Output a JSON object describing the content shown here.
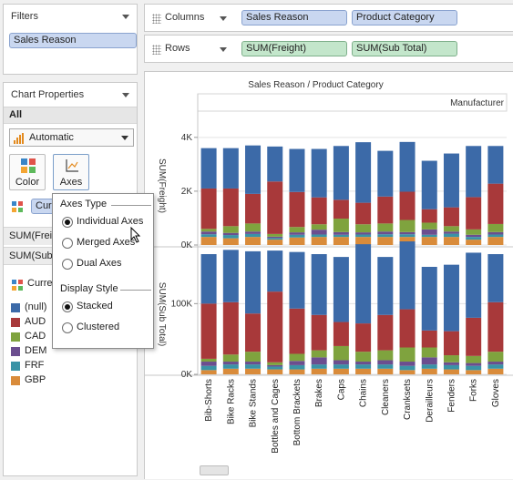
{
  "filters": {
    "title": "Filters",
    "pill": "Sales Reason"
  },
  "columns_shelf": {
    "label": "Columns",
    "pills": [
      "Sales Reason",
      "Product Category"
    ]
  },
  "rows_shelf": {
    "label": "Rows",
    "pills": [
      "SUM(Freight)",
      "SUM(Sub Total)"
    ]
  },
  "chart_properties": {
    "title": "Chart Properties",
    "scope": "All",
    "mark_type": "Automatic",
    "color_button": "Color",
    "axes_button": "Axes",
    "color_pill": "Currency",
    "measure_rows": [
      "SUM(Freight)",
      "SUM(Sub Total)"
    ],
    "legend_title": "Currency"
  },
  "legend": [
    {
      "label": "(null)",
      "color": "#3c6aa8"
    },
    {
      "label": "AUD",
      "color": "#a8393a"
    },
    {
      "label": "CAD",
      "color": "#7fa33e"
    },
    {
      "label": "DEM",
      "color": "#6b4e8f"
    },
    {
      "label": "FRF",
      "color": "#3a93a6"
    },
    {
      "label": "GBP",
      "color": "#d98b3a"
    }
  ],
  "axes_popup": {
    "section1": "Axes Type",
    "options1": [
      "Individual Axes",
      "Merged Axes",
      "Dual Axes"
    ],
    "selected1": 0,
    "section2": "Display Style",
    "options2": [
      "Stacked",
      "Clustered"
    ],
    "selected2": 0
  },
  "chart_data": {
    "type": "bar",
    "title": "Sales Reason / Product Category",
    "facet_header": "Manufacturer",
    "categories": [
      "Bib-Shorts",
      "Bike Racks",
      "Bike Stands",
      "Bottles and Cages",
      "Bottom Brackets",
      "Brakes",
      "Caps",
      "Chains",
      "Cleaners",
      "Cranksets",
      "Derailleurs",
      "Fenders",
      "Forks",
      "Gloves"
    ],
    "panels": [
      {
        "ylabel": "SUM(Freight)",
        "ticks": [
          "0K",
          "2K",
          "4K"
        ],
        "tick_values": [
          0,
          2000,
          4000
        ],
        "ylim": [
          0,
          4400
        ],
        "series": [
          {
            "name": "GBP",
            "values": [
              300,
              250,
              300,
              200,
              280,
              300,
              300,
              300,
              300,
              300,
              300,
              300,
              200,
              300
            ]
          },
          {
            "name": "FRF",
            "values": [
              100,
              120,
              110,
              60,
              100,
              90,
              80,
              90,
              100,
              100,
              80,
              120,
              100,
              90
            ]
          },
          {
            "name": "DEM",
            "values": [
              100,
              80,
              90,
              50,
              90,
              180,
              100,
              80,
              100,
              80,
              200,
              80,
              80,
              90
            ]
          },
          {
            "name": "CAD",
            "values": [
              100,
              250,
              300,
              100,
              200,
              200,
              500,
              300,
              300,
              450,
              250,
              200,
              200,
              300
            ]
          },
          {
            "name": "AUD",
            "values": [
              1500,
              1400,
              1100,
              1950,
              1300,
              1000,
              700,
              800,
              1000,
              1050,
              500,
              700,
              1200,
              1500
            ]
          },
          {
            "name": "(null)",
            "values": [
              1500,
              1500,
              1800,
              1300,
              1600,
              1800,
              2000,
              2250,
              1700,
              1850,
              1800,
              2000,
              1900,
              1400
            ]
          }
        ]
      },
      {
        "ylabel": "SUM(Sub Total)",
        "ticks": [
          "0K",
          "100K"
        ],
        "tick_values": [
          0,
          100000
        ],
        "ylim": [
          0,
          170000
        ],
        "series": [
          {
            "name": "GBP",
            "values": [
              6000,
              8000,
              8000,
              7000,
              7000,
              8000,
              8000,
              8000,
              8000,
              6000,
              8000,
              7000,
              6000,
              8000
            ]
          },
          {
            "name": "FRF",
            "values": [
              6000,
              6000,
              6000,
              4000,
              6000,
              6000,
              6000,
              6000,
              6000,
              6000,
              6000,
              6000,
              6000,
              6000
            ]
          },
          {
            "name": "DEM",
            "values": [
              6000,
              4000,
              4000,
              2000,
              6000,
              10000,
              6000,
              4000,
              6000,
              6000,
              10000,
              4000,
              4000,
              4000
            ]
          },
          {
            "name": "CAD",
            "values": [
              4000,
              10000,
              14000,
              4000,
              10000,
              10000,
              20000,
              14000,
              14000,
              20000,
              14000,
              10000,
              10000,
              14000
            ]
          },
          {
            "name": "AUD",
            "values": [
              78000,
              74000,
              54000,
              100000,
              64000,
              50000,
              34000,
              40000,
              50000,
              54000,
              24000,
              34000,
              54000,
              70000
            ]
          },
          {
            "name": "(null)",
            "values": [
              70000,
              74000,
              88000,
              58000,
              80000,
              86000,
              92000,
              112000,
              82000,
              96000,
              90000,
              94000,
              92000,
              68000
            ]
          }
        ]
      }
    ]
  }
}
